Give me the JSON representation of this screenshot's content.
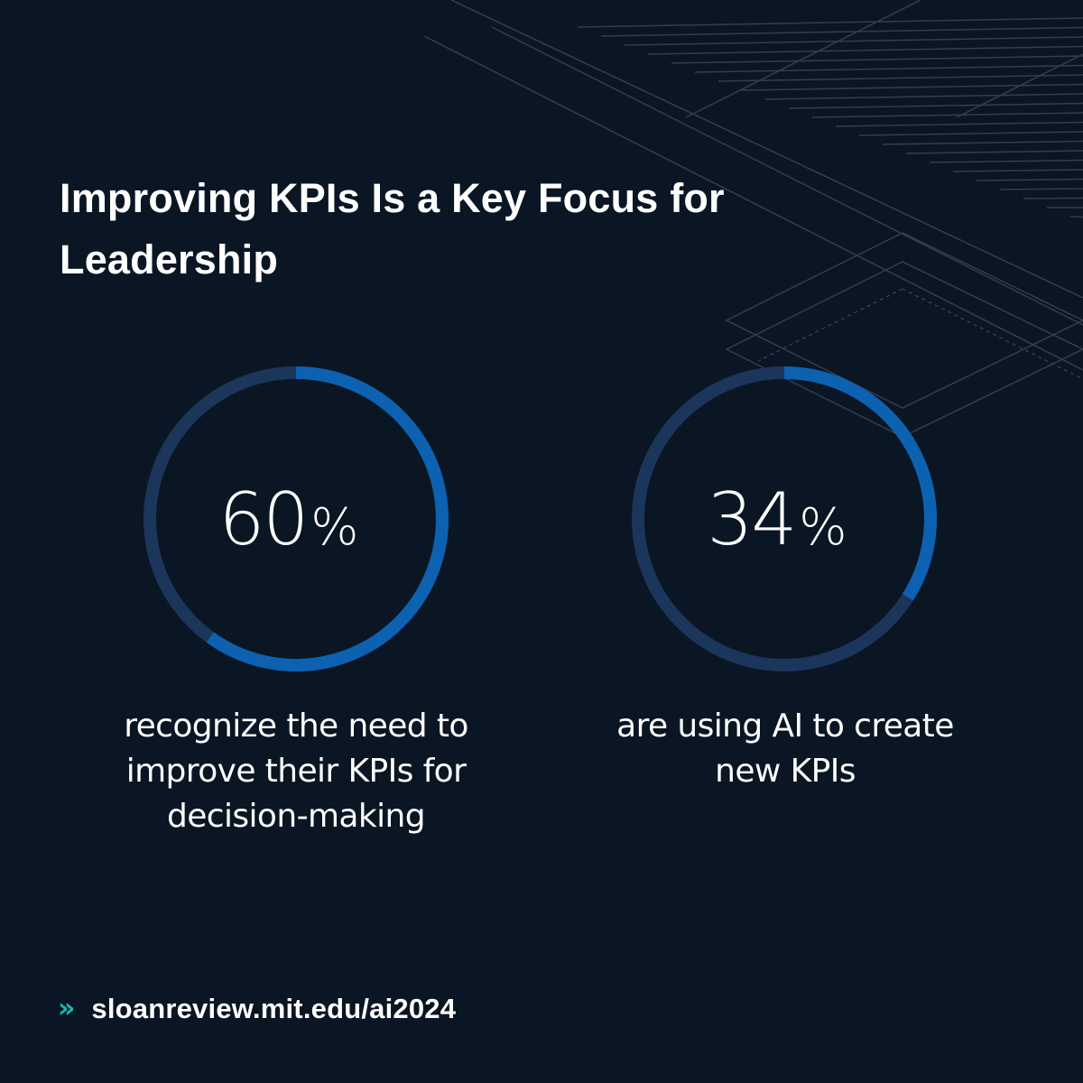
{
  "title": "Improving KPIs Is a Key Focus for Leadership",
  "chart_data": [
    {
      "type": "pie",
      "values": [
        60,
        40
      ],
      "label_number": "60",
      "label_unit": "%",
      "caption": "recognize the need to improve their KPIs for decision-making",
      "colors": {
        "fill": "#0d61b1",
        "track": "#1c355b"
      }
    },
    {
      "type": "pie",
      "values": [
        34,
        66
      ],
      "label_number": "34",
      "label_unit": "%",
      "caption": "are using AI to create new KPIs",
      "colors": {
        "fill": "#0d61b1",
        "track": "#1c355b"
      }
    }
  ],
  "footer": {
    "chevron": "»",
    "url": "sloanreview.mit.edu/ai2024"
  },
  "colors": {
    "background": "#0a1624",
    "accent_teal": "#19b6b0",
    "text": "#ffffff"
  }
}
